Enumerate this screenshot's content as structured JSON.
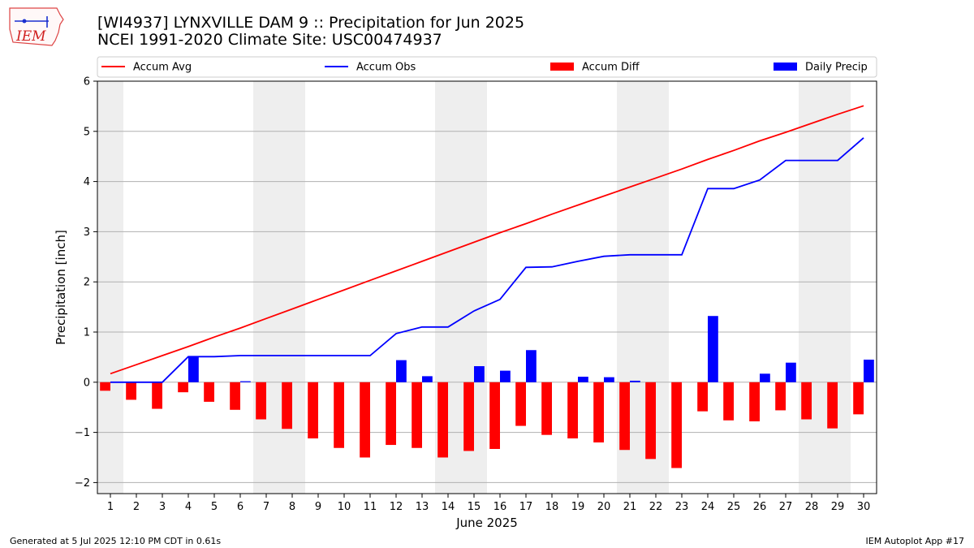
{
  "header": {
    "title_line1": "[WI4937] LYNXVILLE DAM 9 :: Precipitation for Jun 2025",
    "title_line2": "NCEI 1991-2020 Climate Site: USC00474937"
  },
  "logo": {
    "text": "IEM",
    "icon": "iowa-state-map-logo"
  },
  "footer": {
    "left": "Generated at 5 Jul 2025 12:10 PM CDT in 0.61s",
    "right": "IEM Autoplot App #17"
  },
  "colors": {
    "accum_avg": "#ff0000",
    "accum_obs": "#0000ff",
    "accum_diff": "#ff0000",
    "daily_precip": "#0000ff",
    "weekend_shade": "#eeeeee",
    "grid": "#b0b0b0"
  },
  "chart_data": {
    "type": "bar",
    "title": "[WI4937] LYNXVILLE DAM 9 :: Precipitation for Jun 2025",
    "subtitle": "NCEI 1991-2020 Climate Site: USC00474937",
    "xlabel": "June 2025",
    "ylabel": "Precipitation [inch]",
    "xlim": [
      0.5,
      30.5
    ],
    "ylim": [
      -2.22,
      6
    ],
    "yticks": [
      -2,
      -1,
      0,
      1,
      2,
      3,
      4,
      5,
      6
    ],
    "ytick_labels": [
      "−2",
      "−1",
      "0",
      "1",
      "2",
      "3",
      "4",
      "5",
      "6"
    ],
    "grid": "y-major",
    "legend_position": "top",
    "legend": [
      "Accum Avg",
      "Accum Obs",
      "Accum Diff",
      "Daily Precip"
    ],
    "weekend_shaded_days": [
      [
        1
      ],
      [
        7,
        8
      ],
      [
        14,
        15
      ],
      [
        21,
        22
      ],
      [
        28,
        29
      ]
    ],
    "days": [
      "1",
      "2",
      "3",
      "4",
      "5",
      "6",
      "7",
      "8",
      "9",
      "10",
      "11",
      "12",
      "13",
      "14",
      "15",
      "16",
      "17",
      "18",
      "19",
      "20",
      "21",
      "22",
      "23",
      "24",
      "25",
      "26",
      "27",
      "28",
      "29",
      "30"
    ],
    "series": [
      {
        "name": "Accum Avg",
        "kind": "line",
        "values": [
          0.17,
          0.35,
          0.53,
          0.71,
          0.9,
          1.08,
          1.27,
          1.46,
          1.65,
          1.84,
          2.03,
          2.22,
          2.41,
          2.6,
          2.79,
          2.98,
          3.16,
          3.35,
          3.53,
          3.71,
          3.89,
          4.07,
          4.25,
          4.44,
          4.62,
          4.81,
          4.98,
          5.16,
          5.34,
          5.51
        ]
      },
      {
        "name": "Accum Obs",
        "kind": "line",
        "values": [
          0,
          0,
          0,
          0.51,
          0.51,
          0.53,
          0.53,
          0.53,
          0.53,
          0.53,
          0.53,
          0.97,
          1.1,
          1.1,
          1.42,
          1.65,
          2.29,
          2.3,
          2.41,
          2.51,
          2.54,
          2.54,
          2.54,
          3.86,
          3.86,
          4.03,
          4.42,
          4.42,
          4.42,
          4.87
        ]
      },
      {
        "name": "Accum Diff",
        "kind": "bar",
        "values": [
          -0.17,
          -0.35,
          -0.53,
          -0.2,
          -0.39,
          -0.55,
          -0.74,
          -0.93,
          -1.12,
          -1.31,
          -1.5,
          -1.25,
          -1.31,
          -1.5,
          -1.37,
          -1.33,
          -0.87,
          -1.05,
          -1.12,
          -1.2,
          -1.35,
          -1.53,
          -1.71,
          -0.58,
          -0.76,
          -0.78,
          -0.56,
          -0.74,
          -0.92,
          -0.64
        ]
      },
      {
        "name": "Daily Precip",
        "kind": "bar",
        "values": [
          0,
          0,
          0,
          0.51,
          0,
          0.02,
          0,
          0,
          0,
          0,
          0,
          0.44,
          0.12,
          0,
          0.32,
          0.23,
          0.64,
          0,
          0.11,
          0.1,
          0.03,
          0,
          0,
          1.32,
          0,
          0.17,
          0.39,
          0,
          0,
          0.45
        ]
      }
    ]
  }
}
